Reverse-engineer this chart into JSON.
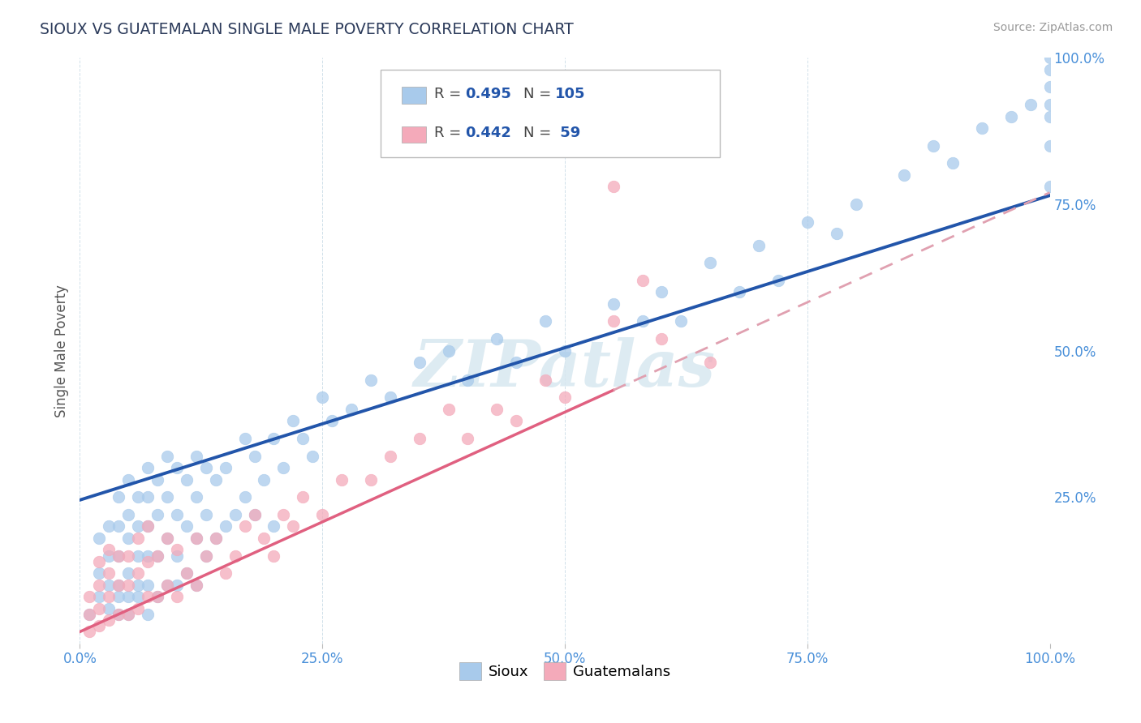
{
  "title": "SIOUX VS GUATEMALAN SINGLE MALE POVERTY CORRELATION CHART",
  "source": "Source: ZipAtlas.com",
  "ylabel": "Single Male Poverty",
  "xlim": [
    0,
    1
  ],
  "ylim": [
    0,
    1
  ],
  "xticks": [
    0.0,
    0.25,
    0.5,
    0.75,
    1.0
  ],
  "xtick_labels": [
    "0.0%",
    "25.0%",
    "50.0%",
    "75.0%",
    "100.0%"
  ],
  "ytick_labels": [
    "25.0%",
    "50.0%",
    "75.0%",
    "100.0%"
  ],
  "yticks": [
    0.25,
    0.5,
    0.75,
    1.0
  ],
  "sioux_color": "#A8CAEB",
  "guatemalan_color": "#F4AABA",
  "sioux_line_color": "#2255AA",
  "guatemalan_line_color": "#E06080",
  "guatemalan_dash_color": "#E0A0B0",
  "R_sioux": 0.495,
  "N_sioux": 105,
  "R_guatemalan": 0.442,
  "N_guatemalan": 59,
  "legend_labels": [
    "Sioux",
    "Guatemalans"
  ],
  "watermark": "ZIPatlas",
  "title_color": "#2B3A5A",
  "axis_label_color": "#555555",
  "tick_label_color": "#4A90D9",
  "grid_color": "#CCDDE8",
  "sioux_x": [
    0.01,
    0.02,
    0.02,
    0.02,
    0.03,
    0.03,
    0.03,
    0.03,
    0.04,
    0.04,
    0.04,
    0.04,
    0.04,
    0.04,
    0.05,
    0.05,
    0.05,
    0.05,
    0.05,
    0.05,
    0.06,
    0.06,
    0.06,
    0.06,
    0.06,
    0.07,
    0.07,
    0.07,
    0.07,
    0.07,
    0.07,
    0.08,
    0.08,
    0.08,
    0.08,
    0.09,
    0.09,
    0.09,
    0.09,
    0.1,
    0.1,
    0.1,
    0.1,
    0.11,
    0.11,
    0.11,
    0.12,
    0.12,
    0.12,
    0.12,
    0.13,
    0.13,
    0.13,
    0.14,
    0.14,
    0.15,
    0.15,
    0.16,
    0.17,
    0.17,
    0.18,
    0.18,
    0.19,
    0.2,
    0.2,
    0.21,
    0.22,
    0.23,
    0.24,
    0.25,
    0.26,
    0.28,
    0.3,
    0.32,
    0.35,
    0.38,
    0.4,
    0.43,
    0.45,
    0.48,
    0.5,
    0.55,
    0.58,
    0.6,
    0.62,
    0.65,
    0.68,
    0.7,
    0.72,
    0.75,
    0.78,
    0.8,
    0.85,
    0.88,
    0.9,
    0.93,
    0.96,
    0.98,
    1.0,
    1.0,
    1.0,
    1.0,
    1.0,
    1.0,
    1.0
  ],
  "sioux_y": [
    0.05,
    0.08,
    0.12,
    0.18,
    0.06,
    0.1,
    0.15,
    0.2,
    0.05,
    0.08,
    0.1,
    0.15,
    0.2,
    0.25,
    0.05,
    0.08,
    0.12,
    0.18,
    0.22,
    0.28,
    0.08,
    0.1,
    0.15,
    0.2,
    0.25,
    0.05,
    0.1,
    0.15,
    0.2,
    0.25,
    0.3,
    0.08,
    0.15,
    0.22,
    0.28,
    0.1,
    0.18,
    0.25,
    0.32,
    0.1,
    0.15,
    0.22,
    0.3,
    0.12,
    0.2,
    0.28,
    0.1,
    0.18,
    0.25,
    0.32,
    0.15,
    0.22,
    0.3,
    0.18,
    0.28,
    0.2,
    0.3,
    0.22,
    0.25,
    0.35,
    0.22,
    0.32,
    0.28,
    0.2,
    0.35,
    0.3,
    0.38,
    0.35,
    0.32,
    0.42,
    0.38,
    0.4,
    0.45,
    0.42,
    0.48,
    0.5,
    0.45,
    0.52,
    0.48,
    0.55,
    0.5,
    0.58,
    0.55,
    0.6,
    0.55,
    0.65,
    0.6,
    0.68,
    0.62,
    0.72,
    0.7,
    0.75,
    0.8,
    0.85,
    0.82,
    0.88,
    0.9,
    0.92,
    0.78,
    0.9,
    0.95,
    0.98,
    0.85,
    0.92,
    1.0
  ],
  "guatemalan_x": [
    0.01,
    0.01,
    0.01,
    0.02,
    0.02,
    0.02,
    0.02,
    0.03,
    0.03,
    0.03,
    0.03,
    0.04,
    0.04,
    0.04,
    0.05,
    0.05,
    0.05,
    0.06,
    0.06,
    0.06,
    0.07,
    0.07,
    0.07,
    0.08,
    0.08,
    0.09,
    0.09,
    0.1,
    0.1,
    0.11,
    0.12,
    0.12,
    0.13,
    0.14,
    0.15,
    0.16,
    0.17,
    0.18,
    0.19,
    0.2,
    0.21,
    0.22,
    0.23,
    0.25,
    0.27,
    0.3,
    0.32,
    0.35,
    0.38,
    0.4,
    0.43,
    0.45,
    0.48,
    0.5,
    0.55,
    0.55,
    0.58,
    0.6,
    0.65
  ],
  "guatemalan_y": [
    0.02,
    0.05,
    0.08,
    0.03,
    0.06,
    0.1,
    0.14,
    0.04,
    0.08,
    0.12,
    0.16,
    0.05,
    0.1,
    0.15,
    0.05,
    0.1,
    0.15,
    0.06,
    0.12,
    0.18,
    0.08,
    0.14,
    0.2,
    0.08,
    0.15,
    0.1,
    0.18,
    0.08,
    0.16,
    0.12,
    0.1,
    0.18,
    0.15,
    0.18,
    0.12,
    0.15,
    0.2,
    0.22,
    0.18,
    0.15,
    0.22,
    0.2,
    0.25,
    0.22,
    0.28,
    0.28,
    0.32,
    0.35,
    0.4,
    0.35,
    0.4,
    0.38,
    0.45,
    0.42,
    0.78,
    0.55,
    0.62,
    0.52,
    0.48
  ],
  "sioux_line_intercept": 0.245,
  "sioux_line_slope": 0.52,
  "guatemalan_line_intercept": 0.02,
  "guatemalan_line_slope": 0.75
}
